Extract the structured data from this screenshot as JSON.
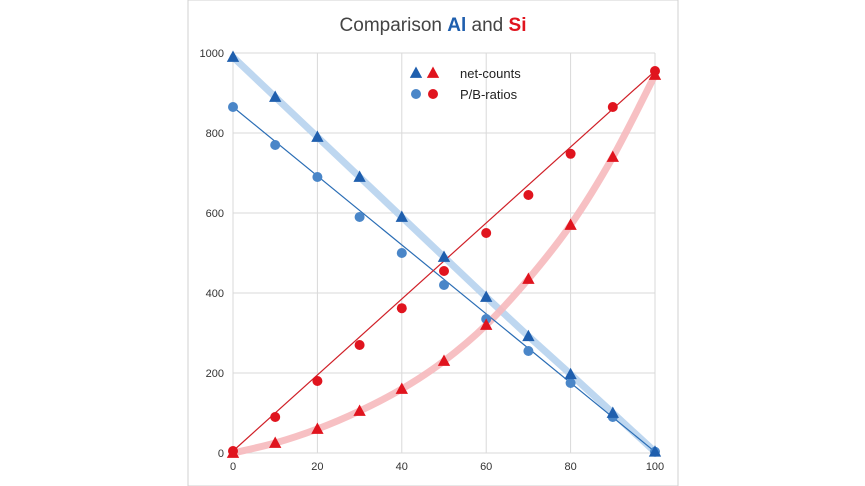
{
  "chart_data": {
    "type": "scatter",
    "title": {
      "prefix": "Comparison ",
      "element_a": "Al",
      "connector": " and ",
      "element_b": "Si"
    },
    "xlabel": "",
    "ylabel": "",
    "xlim": [
      0,
      100
    ],
    "ylim": [
      0,
      1000
    ],
    "x_ticks": [
      0,
      20,
      40,
      60,
      80,
      100
    ],
    "y_ticks": [
      0,
      200,
      400,
      600,
      800,
      1000
    ],
    "grid": true,
    "legend": {
      "placement": "top-center",
      "entries": [
        {
          "label": "net-counts",
          "marker": "triangle"
        },
        {
          "label": "P/B-ratios",
          "marker": "circle"
        }
      ]
    },
    "colors": {
      "al_marker": "#1f5fae",
      "al_circle": "#4a86c8",
      "al_line": "#2a6db5",
      "al_band": "#b7d3ee",
      "si_marker": "#e0141e",
      "si_line": "#d02028",
      "si_band": "#f6b9bd",
      "al_title": "#1f5fae",
      "si_title": "#e0141e"
    },
    "series": [
      {
        "element": "Al",
        "kind": "net-counts",
        "marker": "triangle",
        "x": [
          0,
          10,
          20,
          30,
          40,
          50,
          60,
          70,
          80,
          90,
          100
        ],
        "y": [
          990,
          890,
          790,
          690,
          590,
          490,
          390,
          292,
          197,
          100,
          3
        ]
      },
      {
        "element": "Al",
        "kind": "P/B-ratios",
        "marker": "circle",
        "x": [
          0,
          10,
          20,
          30,
          40,
          50,
          60,
          70,
          80,
          90,
          100
        ],
        "y": [
          865,
          770,
          690,
          590,
          500,
          420,
          335,
          255,
          175,
          90,
          3
        ]
      },
      {
        "element": "Si",
        "kind": "net-counts",
        "marker": "triangle",
        "x": [
          0,
          10,
          20,
          30,
          40,
          50,
          60,
          70,
          80,
          90,
          100
        ],
        "y": [
          0,
          25,
          60,
          105,
          160,
          230,
          320,
          435,
          570,
          740,
          945
        ]
      },
      {
        "element": "Si",
        "kind": "P/B-ratios",
        "marker": "circle",
        "x": [
          0,
          10,
          20,
          30,
          40,
          50,
          60,
          70,
          80,
          90,
          100
        ],
        "y": [
          5,
          90,
          180,
          270,
          362,
          455,
          550,
          645,
          748,
          865,
          955
        ]
      }
    ]
  }
}
